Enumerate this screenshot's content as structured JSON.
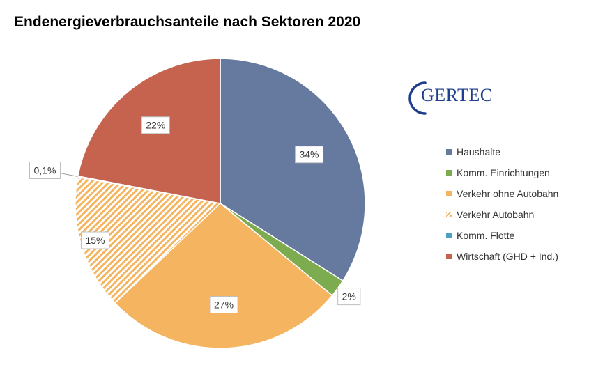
{
  "chart_data": {
    "type": "pie",
    "title": "Endenergieverbrauchsanteile nach Sektoren 2020",
    "legend_position": "right",
    "slices": [
      {
        "name": "Haushalte",
        "value": 34,
        "label": "34%",
        "color": "#667a9f",
        "pattern": "solid"
      },
      {
        "name": "Komm. Einrichtungen",
        "value": 2,
        "label": "2%",
        "color": "#7dab4f",
        "pattern": "solid"
      },
      {
        "name": "Verkehr ohne Autobahn",
        "value": 27,
        "label": "27%",
        "color": "#f4b460",
        "pattern": "solid"
      },
      {
        "name": "Verkehr Autobahn",
        "value": 15,
        "label": "15%",
        "color": "#f4b460",
        "pattern": "hatched"
      },
      {
        "name": "Komm. Flotte",
        "value": 0.1,
        "label": "0,1%",
        "color": "#4e9fc3",
        "pattern": "solid"
      },
      {
        "name": "Wirtschaft (GHD + Ind.)",
        "value": 22,
        "label": "22%",
        "color": "#c6634e",
        "pattern": "solid"
      }
    ]
  },
  "logo": {
    "text": "GERTEC",
    "color": "#1f3f8e"
  }
}
